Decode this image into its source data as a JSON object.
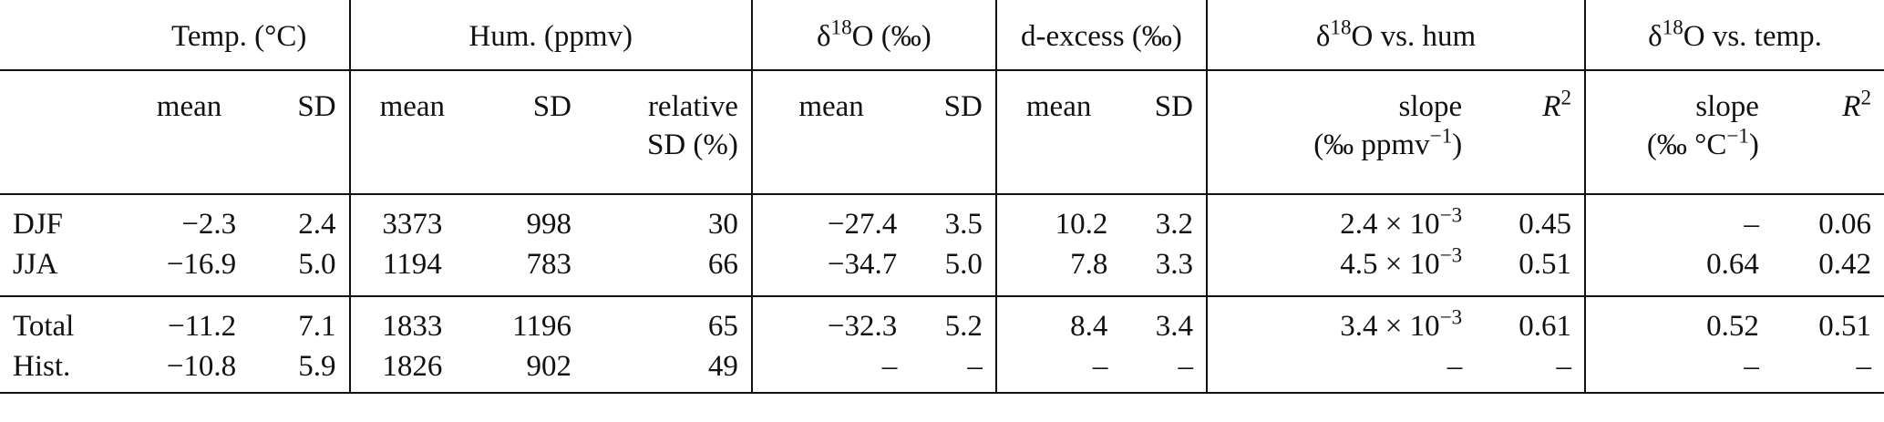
{
  "groups": {
    "temp": "Temp. (°C)",
    "hum": "Hum. (ppmv)",
    "d18o_prefix": "δ",
    "d18o_sup": "18",
    "d18o_suffix": "O (‰)",
    "dexcess": "d-excess (‰)",
    "vs_hum_prefix": "δ",
    "vs_hum_sup": "18",
    "vs_hum_suffix": "O vs. hum",
    "vs_temp_prefix": "δ",
    "vs_temp_sup": "18",
    "vs_temp_suffix": "O vs. temp."
  },
  "subheaders": {
    "mean": "mean",
    "sd": "SD",
    "relative_line1": "relative",
    "relative_line2": "SD (%)",
    "slope": "slope",
    "r2_base": "R",
    "r2_sup": "2",
    "hum_unit_base": "(‰ ppmv",
    "hum_unit_sup": "−1",
    "hum_unit_close": ")",
    "temp_unit_base": "(‰ °C",
    "temp_unit_sup": "−1",
    "temp_unit_close": ")"
  },
  "rows": [
    {
      "label": "DJF",
      "t_mean": "−2.3",
      "t_sd": "2.4",
      "h_mean": "3373",
      "h_sd": "998",
      "h_rel": "30",
      "o_mean": "−27.4",
      "o_sd": "3.5",
      "d_mean": "10.2",
      "d_sd": "3.2",
      "sh_base": "2.4 × 10",
      "sh_exp": "−3",
      "sh_r2": "0.45",
      "st": "–",
      "st_r2": "0.06"
    },
    {
      "label": "JJA",
      "t_mean": "−16.9",
      "t_sd": "5.0",
      "h_mean": "1194",
      "h_sd": "783",
      "h_rel": "66",
      "o_mean": "−34.7",
      "o_sd": "5.0",
      "d_mean": "7.8",
      "d_sd": "3.3",
      "sh_base": "4.5 × 10",
      "sh_exp": "−3",
      "sh_r2": "0.51",
      "st": "0.64",
      "st_r2": "0.42"
    },
    {
      "label": "Total",
      "t_mean": "−11.2",
      "t_sd": "7.1",
      "h_mean": "1833",
      "h_sd": "1196",
      "h_rel": "65",
      "o_mean": "−32.3",
      "o_sd": "5.2",
      "d_mean": "8.4",
      "d_sd": "3.4",
      "sh_base": "3.4 × 10",
      "sh_exp": "−3",
      "sh_r2": "0.61",
      "st": "0.52",
      "st_r2": "0.51"
    },
    {
      "label": "Hist.",
      "t_mean": "−10.8",
      "t_sd": "5.9",
      "h_mean": "1826",
      "h_sd": "902",
      "h_rel": "49",
      "o_mean": "–",
      "o_sd": "–",
      "d_mean": "–",
      "d_sd": "–",
      "sh_base": "–",
      "sh_exp": "",
      "sh_r2": "–",
      "st": "–",
      "st_r2": "–"
    }
  ]
}
